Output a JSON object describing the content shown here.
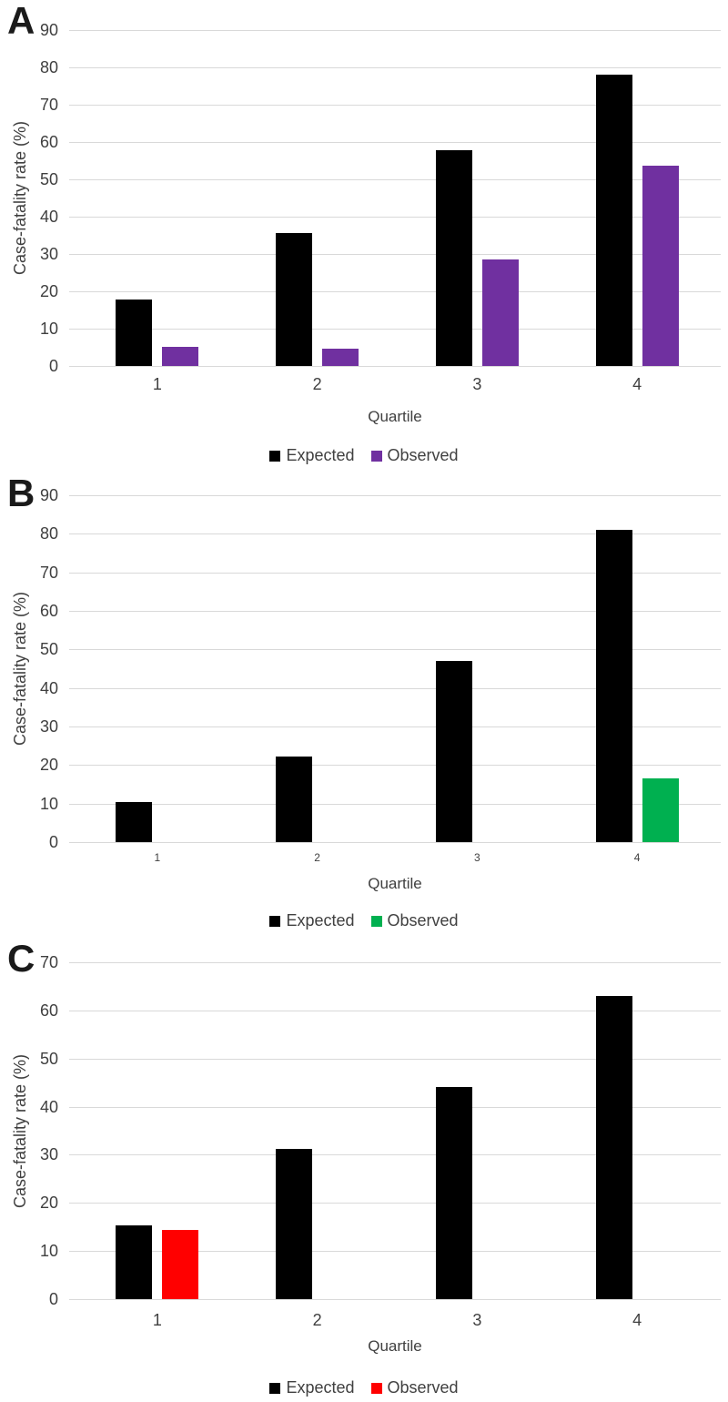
{
  "figure": {
    "panel_labels": [
      "A",
      "B",
      "C"
    ]
  },
  "colors": {
    "expected": "#000000",
    "observed_a": "#7030A0",
    "observed_b": "#00B050",
    "observed_c": "#FF0000",
    "gridline": "#D9D9D9",
    "axis_text": "#404040"
  },
  "chart_data": [
    {
      "type": "bar",
      "panel_label": "A",
      "categories": [
        "1",
        "2",
        "3",
        "4"
      ],
      "series": [
        {
          "name": "Expected",
          "color": "#000000",
          "values": [
            17.8,
            35.5,
            57.8,
            78
          ]
        },
        {
          "name": "Observed",
          "color": "#7030A0",
          "values": [
            5.2,
            4.7,
            28.6,
            53.7
          ]
        }
      ],
      "xlabel": "Quartile",
      "ylabel": "Case-fatality rate (%)",
      "ylim": [
        0,
        90
      ],
      "ytick_step": 10,
      "grid": true,
      "legend_position": "bottom"
    },
    {
      "type": "bar",
      "panel_label": "B",
      "categories": [
        "1",
        "2",
        "3",
        "4"
      ],
      "series": [
        {
          "name": "Expected",
          "color": "#000000",
          "values": [
            10.5,
            22.3,
            47,
            81
          ]
        },
        {
          "name": "Observed",
          "color": "#00B050",
          "values": [
            0,
            0,
            0,
            16.5
          ]
        }
      ],
      "xlabel": "Quartile",
      "ylabel": "Case-fatality rate (%)",
      "ylim": [
        0,
        90
      ],
      "ytick_step": 10,
      "grid": true,
      "legend_position": "bottom"
    },
    {
      "type": "bar",
      "panel_label": "C",
      "categories": [
        "1",
        "2",
        "3",
        "4"
      ],
      "series": [
        {
          "name": "Expected",
          "color": "#000000",
          "values": [
            15.4,
            31.3,
            44,
            63
          ]
        },
        {
          "name": "Observed",
          "color": "#FF0000",
          "values": [
            14.4,
            0,
            0,
            0
          ]
        }
      ],
      "xlabel": "Quartile",
      "ylabel": "Case-fatality rate (%)",
      "ylim": [
        0,
        70
      ],
      "ytick_step": 10,
      "grid": true,
      "legend_position": "bottom"
    }
  ]
}
